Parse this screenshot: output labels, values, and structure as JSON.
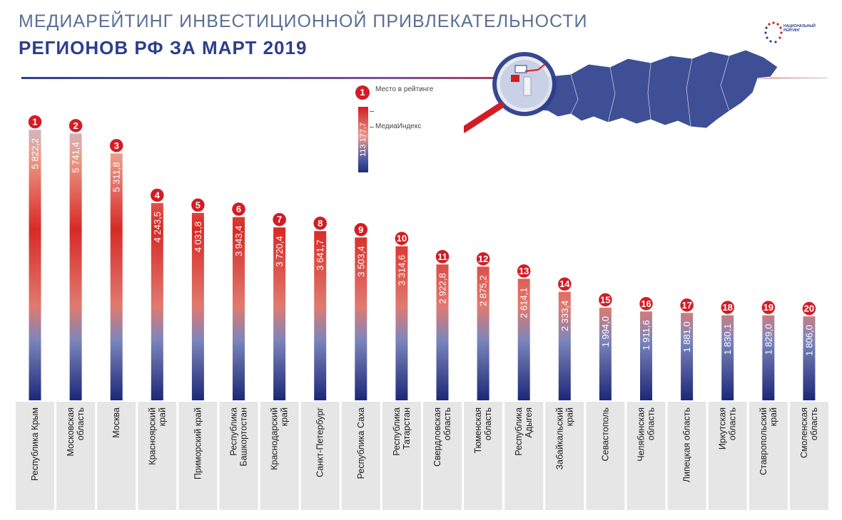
{
  "header": {
    "title_line1": "МЕДИАРЕЙТИНГ ИНВЕСТИЦИОННОЙ ПРИВЛЕКАТЕЛЬНОСТИ",
    "title_line2": "РЕГИОНОВ РФ ЗА МАРТ 2019"
  },
  "legend": {
    "rank_label": "Место в рейтинге",
    "rank_example": "1",
    "value_label": "МедиаИндекс",
    "value_example": "113 177,7"
  },
  "logo": {
    "text": "НАЦИОНАЛЬНЫЙ РЕЙТИНГ",
    "icon": "dotted-circle-logo"
  },
  "map": {
    "icon": "russia-map-with-magnifier"
  },
  "colors": {
    "red": "#d31c24",
    "blue": "#1f2c7a",
    "label_bg": "#e6e6e6"
  },
  "chart_data": {
    "type": "bar",
    "title": "МЕДИАРЕЙТИНГ ИНВЕСТИЦИОННОЙ ПРИВЛЕКАТЕЛЬНОСТИ РЕГИОНОВ РФ ЗА МАРТ 2019",
    "xlabel": "",
    "ylabel": "",
    "ylim": [
      0,
      5900
    ],
    "grid": false,
    "orientation": "vertical",
    "categories": [
      "Республика Крым",
      "Московская область",
      "Москва",
      "Красноярский край",
      "Приморский край",
      "Республика Башкортостан",
      "Краснодарский край",
      "Санкт-Петербург",
      "Республика Саха",
      "Республика Татарстан",
      "Свердловская область",
      "Тюменская область",
      "Республика Адыгея",
      "Забайкальский край",
      "Севастополь",
      "Челябинская область",
      "Липецкая область",
      "Иркутская область",
      "Ставропольский край",
      "Смоленская область"
    ],
    "ranks": [
      "1",
      "2",
      "3",
      "4",
      "5",
      "6",
      "7",
      "8",
      "9",
      "10",
      "11",
      "12",
      "13",
      "14",
      "15",
      "16",
      "17",
      "18",
      "19",
      "20"
    ],
    "values": [
      5822.2,
      5741.4,
      5311.8,
      4243.5,
      4031.8,
      3943.4,
      3720.4,
      3641.7,
      3503.4,
      3314.6,
      2922.8,
      2875.2,
      2614.1,
      2333.4,
      1994.0,
      1911.6,
      1881.0,
      1830.1,
      1829.0,
      1806.0
    ],
    "value_labels": [
      "5 822,2",
      "5 741,4",
      "5 311,8",
      "4 243,5",
      "4 031,8",
      "3 943,4",
      "3 720,4",
      "3 641,7",
      "3 503,4",
      "3 314,6",
      "2 922,8",
      "2 875,2",
      "2 614,1",
      "2 333,4",
      "1 994,0",
      "1 911,6",
      "1 881,0",
      "1 830,1",
      "1 829,0",
      "1 806,0"
    ]
  }
}
